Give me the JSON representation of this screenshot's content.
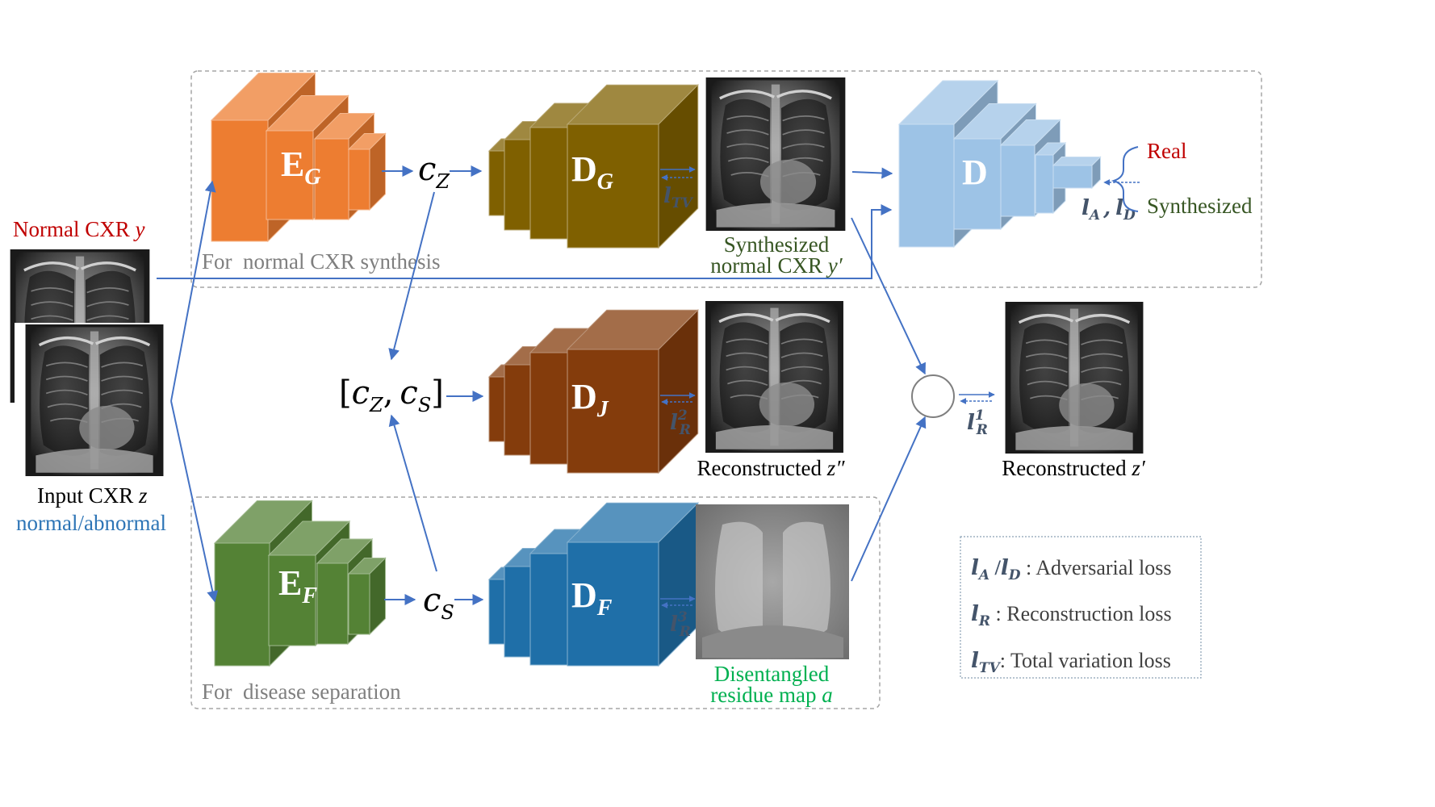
{
  "colors": {
    "encoder_g": "#ED7D31",
    "decoder_g": "#7F6000",
    "decoder_j": "#843C0C",
    "encoder_f": "#548235",
    "decoder_f": "#1F6FA8",
    "discriminator": "#9DC3E6",
    "arrow": "#4472C4",
    "red_text": "#C00000",
    "green_text": "#375623",
    "bright_green_text": "#00B050",
    "blue_text": "#2E75B6",
    "gray_text": "#7F7F7F"
  },
  "groups": {
    "synthesis_label": "For  normal CXR synthesis",
    "separation_label": "For  disease separation"
  },
  "inputs": {
    "normal_label": "Normal CXR",
    "normal_var": "y",
    "input_label": "Input CXR",
    "input_var": "z",
    "input_sub": "normal/abnormal"
  },
  "blocks": {
    "eg": {
      "main": "E",
      "sub": "G"
    },
    "dg": {
      "main": "D",
      "sub": "G"
    },
    "dj": {
      "main": "D",
      "sub": "J"
    },
    "ef": {
      "main": "E",
      "sub": "F"
    },
    "df": {
      "main": "D",
      "sub": "F"
    },
    "d": {
      "main": "D"
    }
  },
  "codes": {
    "cz_main": "c",
    "cz_sub": "Z",
    "cs_main": "c",
    "cs_sub": "S",
    "concat_open": "[",
    "concat_comma": ",",
    "concat_close": "]"
  },
  "losses": {
    "tv_main": "l",
    "tv_sub": "TV",
    "r_main": "l",
    "r_sub": "R",
    "r2_sup": "2",
    "r3_sup": "3",
    "r1_sup": "1",
    "a_main": "l",
    "a_sub": "A",
    "d_main": "l",
    "d_sub": "D",
    "ad_sep": ","
  },
  "outputs": {
    "synth_line1": "Synthesized",
    "synth_line2": "normal CXR",
    "synth_var": "y′",
    "recon2_label": "Reconstructed",
    "recon2_var": "z″",
    "recon1_label": "Reconstructed",
    "recon1_var": "z′",
    "residue_line1": "Disentangled",
    "residue_line2": "residue map",
    "residue_var": "a"
  },
  "discriminator": {
    "real": "Real",
    "synthesized": "Synthesized"
  },
  "legend": [
    {
      "sym": "l",
      "sub": "A",
      "sep": " /",
      "sym2": "l",
      "sub2": "D",
      "text": " : Adversarial loss"
    },
    {
      "sym": "l",
      "sub": "R",
      "text": " : Reconstruction loss"
    },
    {
      "sym": "l",
      "sub": "TV",
      "text": ": Total variation loss"
    }
  ]
}
